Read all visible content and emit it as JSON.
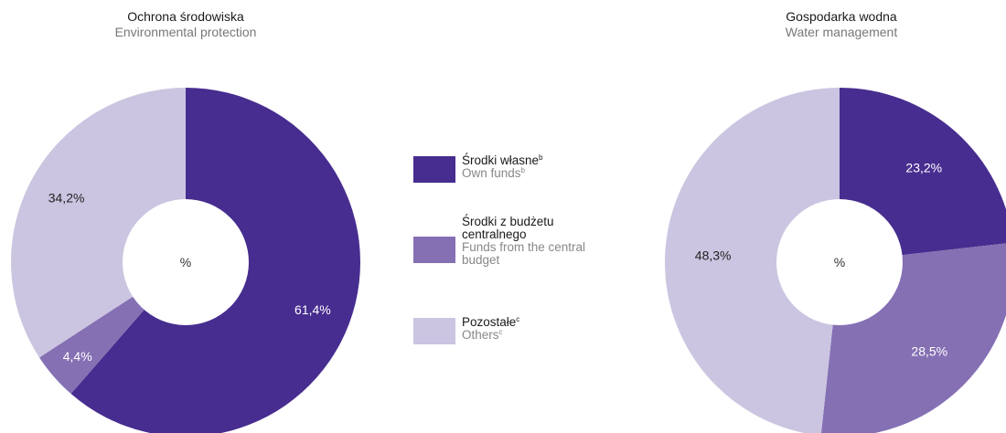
{
  "colors": {
    "own_funds": "#472d8f",
    "central_budget": "#8570b4",
    "others": "#cbc5e1"
  },
  "center_label": "%",
  "legend": [
    {
      "key": "own_funds",
      "label_pl": "Środki własne",
      "label_en": "Own funds",
      "sup": "b"
    },
    {
      "key": "central_budget",
      "label_pl": "Środki z budżetu centralnego",
      "label_en": "Funds from the central budget",
      "sup": ""
    },
    {
      "key": "others",
      "label_pl": "Pozostałe",
      "label_en": "Others",
      "sup": "c"
    }
  ],
  "chart_data": [
    {
      "type": "pie",
      "title": "Ochrona środowiska",
      "subtitle": "Environmental protection",
      "slices": [
        {
          "key": "own_funds",
          "value": 61.4,
          "label": "61,4%"
        },
        {
          "key": "central_budget",
          "value": 4.4,
          "label": "4,4%"
        },
        {
          "key": "others",
          "value": 34.2,
          "label": "34,2%"
        }
      ]
    },
    {
      "type": "pie",
      "title": "Gospodarka wodna",
      "subtitle": "Water management",
      "slices": [
        {
          "key": "own_funds",
          "value": 23.2,
          "label": "23,2%"
        },
        {
          "key": "central_budget",
          "value": 28.5,
          "label": "28,5%"
        },
        {
          "key": "others",
          "value": 48.3,
          "label": "48,3%"
        }
      ]
    }
  ]
}
